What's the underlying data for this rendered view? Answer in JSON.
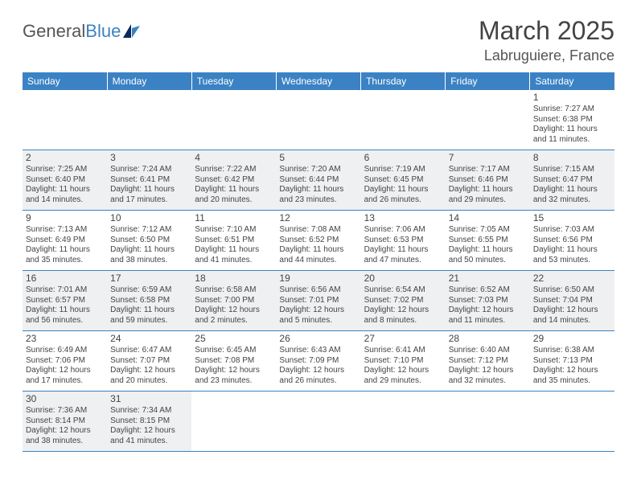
{
  "logo": {
    "text1": "General",
    "text2": "Blue"
  },
  "title": "March 2025",
  "location": "Labruguiere, France",
  "colors": {
    "header_bg": "#3b82c4",
    "header_fg": "#ffffff",
    "row_border": "#3b82c4",
    "shaded_bg": "#eef0f2",
    "page_bg": "#ffffff",
    "text": "#444444"
  },
  "weekdays": [
    "Sunday",
    "Monday",
    "Tuesday",
    "Wednesday",
    "Thursday",
    "Friday",
    "Saturday"
  ],
  "weeks": [
    {
      "shaded": false,
      "days": [
        null,
        null,
        null,
        null,
        null,
        null,
        {
          "n": "1",
          "sunrise": "Sunrise: 7:27 AM",
          "sunset": "Sunset: 6:38 PM",
          "daylight": "Daylight: 11 hours and 11 minutes."
        }
      ]
    },
    {
      "shaded": true,
      "days": [
        {
          "n": "2",
          "sunrise": "Sunrise: 7:25 AM",
          "sunset": "Sunset: 6:40 PM",
          "daylight": "Daylight: 11 hours and 14 minutes."
        },
        {
          "n": "3",
          "sunrise": "Sunrise: 7:24 AM",
          "sunset": "Sunset: 6:41 PM",
          "daylight": "Daylight: 11 hours and 17 minutes."
        },
        {
          "n": "4",
          "sunrise": "Sunrise: 7:22 AM",
          "sunset": "Sunset: 6:42 PM",
          "daylight": "Daylight: 11 hours and 20 minutes."
        },
        {
          "n": "5",
          "sunrise": "Sunrise: 7:20 AM",
          "sunset": "Sunset: 6:44 PM",
          "daylight": "Daylight: 11 hours and 23 minutes."
        },
        {
          "n": "6",
          "sunrise": "Sunrise: 7:19 AM",
          "sunset": "Sunset: 6:45 PM",
          "daylight": "Daylight: 11 hours and 26 minutes."
        },
        {
          "n": "7",
          "sunrise": "Sunrise: 7:17 AM",
          "sunset": "Sunset: 6:46 PM",
          "daylight": "Daylight: 11 hours and 29 minutes."
        },
        {
          "n": "8",
          "sunrise": "Sunrise: 7:15 AM",
          "sunset": "Sunset: 6:47 PM",
          "daylight": "Daylight: 11 hours and 32 minutes."
        }
      ]
    },
    {
      "shaded": false,
      "days": [
        {
          "n": "9",
          "sunrise": "Sunrise: 7:13 AM",
          "sunset": "Sunset: 6:49 PM",
          "daylight": "Daylight: 11 hours and 35 minutes."
        },
        {
          "n": "10",
          "sunrise": "Sunrise: 7:12 AM",
          "sunset": "Sunset: 6:50 PM",
          "daylight": "Daylight: 11 hours and 38 minutes."
        },
        {
          "n": "11",
          "sunrise": "Sunrise: 7:10 AM",
          "sunset": "Sunset: 6:51 PM",
          "daylight": "Daylight: 11 hours and 41 minutes."
        },
        {
          "n": "12",
          "sunrise": "Sunrise: 7:08 AM",
          "sunset": "Sunset: 6:52 PM",
          "daylight": "Daylight: 11 hours and 44 minutes."
        },
        {
          "n": "13",
          "sunrise": "Sunrise: 7:06 AM",
          "sunset": "Sunset: 6:53 PM",
          "daylight": "Daylight: 11 hours and 47 minutes."
        },
        {
          "n": "14",
          "sunrise": "Sunrise: 7:05 AM",
          "sunset": "Sunset: 6:55 PM",
          "daylight": "Daylight: 11 hours and 50 minutes."
        },
        {
          "n": "15",
          "sunrise": "Sunrise: 7:03 AM",
          "sunset": "Sunset: 6:56 PM",
          "daylight": "Daylight: 11 hours and 53 minutes."
        }
      ]
    },
    {
      "shaded": true,
      "days": [
        {
          "n": "16",
          "sunrise": "Sunrise: 7:01 AM",
          "sunset": "Sunset: 6:57 PM",
          "daylight": "Daylight: 11 hours and 56 minutes."
        },
        {
          "n": "17",
          "sunrise": "Sunrise: 6:59 AM",
          "sunset": "Sunset: 6:58 PM",
          "daylight": "Daylight: 11 hours and 59 minutes."
        },
        {
          "n": "18",
          "sunrise": "Sunrise: 6:58 AM",
          "sunset": "Sunset: 7:00 PM",
          "daylight": "Daylight: 12 hours and 2 minutes."
        },
        {
          "n": "19",
          "sunrise": "Sunrise: 6:56 AM",
          "sunset": "Sunset: 7:01 PM",
          "daylight": "Daylight: 12 hours and 5 minutes."
        },
        {
          "n": "20",
          "sunrise": "Sunrise: 6:54 AM",
          "sunset": "Sunset: 7:02 PM",
          "daylight": "Daylight: 12 hours and 8 minutes."
        },
        {
          "n": "21",
          "sunrise": "Sunrise: 6:52 AM",
          "sunset": "Sunset: 7:03 PM",
          "daylight": "Daylight: 12 hours and 11 minutes."
        },
        {
          "n": "22",
          "sunrise": "Sunrise: 6:50 AM",
          "sunset": "Sunset: 7:04 PM",
          "daylight": "Daylight: 12 hours and 14 minutes."
        }
      ]
    },
    {
      "shaded": false,
      "days": [
        {
          "n": "23",
          "sunrise": "Sunrise: 6:49 AM",
          "sunset": "Sunset: 7:06 PM",
          "daylight": "Daylight: 12 hours and 17 minutes."
        },
        {
          "n": "24",
          "sunrise": "Sunrise: 6:47 AM",
          "sunset": "Sunset: 7:07 PM",
          "daylight": "Daylight: 12 hours and 20 minutes."
        },
        {
          "n": "25",
          "sunrise": "Sunrise: 6:45 AM",
          "sunset": "Sunset: 7:08 PM",
          "daylight": "Daylight: 12 hours and 23 minutes."
        },
        {
          "n": "26",
          "sunrise": "Sunrise: 6:43 AM",
          "sunset": "Sunset: 7:09 PM",
          "daylight": "Daylight: 12 hours and 26 minutes."
        },
        {
          "n": "27",
          "sunrise": "Sunrise: 6:41 AM",
          "sunset": "Sunset: 7:10 PM",
          "daylight": "Daylight: 12 hours and 29 minutes."
        },
        {
          "n": "28",
          "sunrise": "Sunrise: 6:40 AM",
          "sunset": "Sunset: 7:12 PM",
          "daylight": "Daylight: 12 hours and 32 minutes."
        },
        {
          "n": "29",
          "sunrise": "Sunrise: 6:38 AM",
          "sunset": "Sunset: 7:13 PM",
          "daylight": "Daylight: 12 hours and 35 minutes."
        }
      ]
    },
    {
      "shaded": true,
      "days": [
        {
          "n": "30",
          "sunrise": "Sunrise: 7:36 AM",
          "sunset": "Sunset: 8:14 PM",
          "daylight": "Daylight: 12 hours and 38 minutes."
        },
        {
          "n": "31",
          "sunrise": "Sunrise: 7:34 AM",
          "sunset": "Sunset: 8:15 PM",
          "daylight": "Daylight: 12 hours and 41 minutes."
        },
        null,
        null,
        null,
        null,
        null
      ]
    }
  ]
}
